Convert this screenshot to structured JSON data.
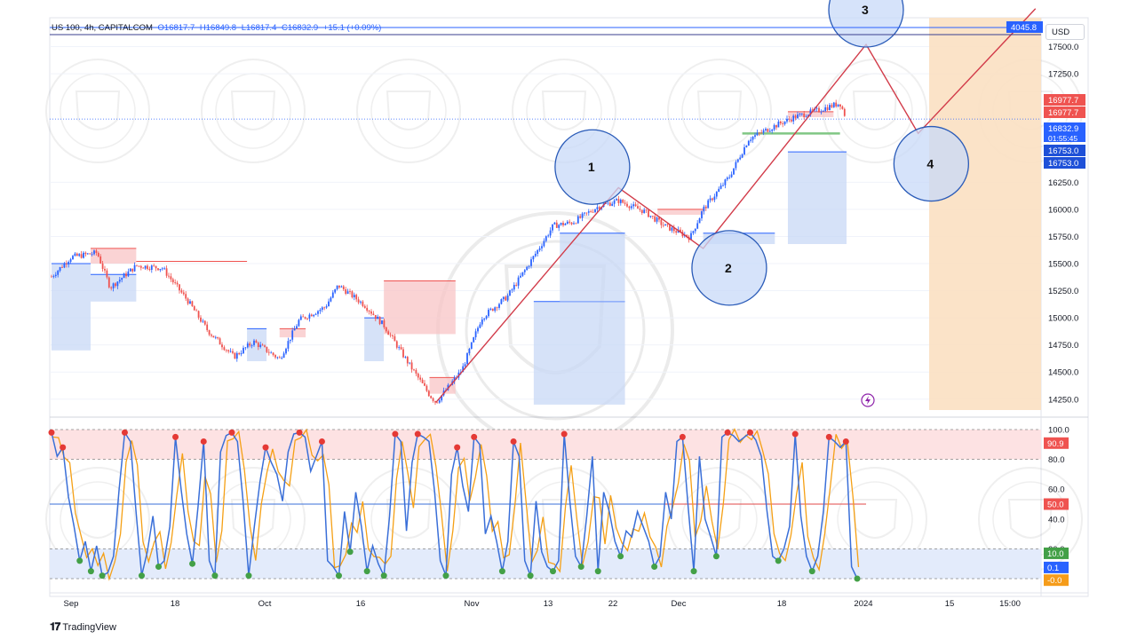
{
  "header": {
    "symbol": "US 100, 4h, CAPITALCOM",
    "open": "O16817.7",
    "high": "H16849.8",
    "low": "L16817.4",
    "close": "C16832.9",
    "change": "+15.1 (+0.09%)"
  },
  "currency_button": "USD",
  "branding": "TradingView",
  "colors": {
    "bull": "#2962ff",
    "bear": "#ef5350",
    "supply_zone": "#f8c4c6",
    "demand_zone": "#c8d8f6",
    "projection_zone": "#fbe0c2",
    "wave_line": "#d23c4a",
    "circle_fill": "#c8d9f8",
    "circle_stroke": "#2a5bb8",
    "stoch_k": "#3a6fd8",
    "stoch_d": "#f5a015"
  },
  "chart_data": [
    {
      "type": "candlestick",
      "symbol": "US 100",
      "timeframe": "4h",
      "ylim": [
        14150,
        17750
      ],
      "y_ticks": [
        "17500.0",
        "17250.0",
        "16250.0",
        "16000.0",
        "15750.0",
        "15500.0",
        "15250.0",
        "15000.0",
        "14750.0",
        "14500.0",
        "14250.0"
      ],
      "x_ticks": [
        "Sep",
        "18",
        "Oct",
        "16",
        "Nov",
        "13",
        "22",
        "Dec",
        "18",
        "2024",
        "15",
        "15:00"
      ],
      "price_labels": [
        {
          "value": "4045.8",
          "color": "#2962ff"
        },
        {
          "value": "16977.7",
          "color": "#ef5350"
        },
        {
          "value": "16977.7",
          "color": "#ef5350"
        },
        {
          "value": "16832.9",
          "color": "#2962ff"
        },
        {
          "value": "01:55:45",
          "color": "#2962ff"
        },
        {
          "value": "16753.0",
          "color": "#1e50d8"
        },
        {
          "value": "16753.0",
          "color": "#1e50d8"
        }
      ],
      "price_path": [
        [
          "Aug 29",
          15380
        ],
        [
          "Sep 1",
          15560
        ],
        [
          "Sep 5",
          15600
        ],
        [
          "Sep 7",
          15280
        ],
        [
          "Sep 11",
          15480
        ],
        [
          "Sep 15",
          15460
        ],
        [
          "Sep 19",
          15150
        ],
        [
          "Sep 22",
          14880
        ],
        [
          "Sep 26",
          14640
        ],
        [
          "Sep 29",
          14780
        ],
        [
          "Oct 3",
          14620
        ],
        [
          "Oct 6",
          14980
        ],
        [
          "Oct 10",
          15100
        ],
        [
          "Oct 12",
          15300
        ],
        [
          "Oct 16",
          15120
        ],
        [
          "Oct 19",
          14930
        ],
        [
          "Oct 23",
          14560
        ],
        [
          "Oct 26",
          14290
        ],
        [
          "Oct 27",
          14220
        ],
        [
          "Oct 31",
          14520
        ],
        [
          "Nov 3",
          15000
        ],
        [
          "Nov 7",
          15200
        ],
        [
          "Nov 10",
          15470
        ],
        [
          "Nov 14",
          15850
        ],
        [
          "Nov 17",
          15880
        ],
        [
          "Nov 21",
          16030
        ],
        [
          "Nov 24",
          16080
        ],
        [
          "Nov 28",
          15980
        ],
        [
          "Dec 1",
          15850
        ],
        [
          "Dec 5",
          15740
        ],
        [
          "Dec 7",
          16000
        ],
        [
          "Dec 11",
          16300
        ],
        [
          "Dec 14",
          16650
        ],
        [
          "Dec 18",
          16770
        ],
        [
          "Dec 21",
          16850
        ],
        [
          "Dec 25",
          16920
        ],
        [
          "Dec 28",
          16980
        ],
        [
          "Dec 29",
          16830
        ]
      ],
      "elliott_wave": [
        {
          "label": "",
          "date": "Oct 27",
          "value": 14220
        },
        {
          "label": "1",
          "date": "Nov 24",
          "value": 16200
        },
        {
          "label": "2",
          "date": "Dec 7",
          "value": 15640
        },
        {
          "label": "3",
          "date": "Jan 1",
          "value": 17520
        },
        {
          "label": "4",
          "date": "Jan 9",
          "value": 16700
        },
        {
          "label": "",
          "date": "Jan 27",
          "value": 17850
        }
      ],
      "wave_circles": [
        {
          "label": "1",
          "date": "Nov 20",
          "value": 16390
        },
        {
          "label": "2",
          "date": "Dec 11",
          "value": 15460
        },
        {
          "label": "3",
          "date": "Jan 1",
          "value": 17840
        },
        {
          "label": "4",
          "date": "Jan 11",
          "value": 16420
        }
      ]
    },
    {
      "type": "line",
      "name": "stochastic",
      "ylim": [
        0,
        100
      ],
      "y_ticks": [
        "100.0",
        "80.0",
        "60.0",
        "40.0",
        "20.0"
      ],
      "level_labels": [
        {
          "value": "90.9",
          "color": "#ef5350"
        },
        {
          "value": "50.0",
          "color": "#ef5350"
        },
        {
          "value": "10.0",
          "color": "#43a047"
        },
        {
          "value": "0.1",
          "color": "#2962ff"
        },
        {
          "value": "-0.0",
          "color": "#f59c1a"
        }
      ],
      "overbought_band": [
        80,
        100
      ],
      "oversold_band": [
        0,
        20
      ],
      "k_values": [
        98,
        82,
        88,
        55,
        35,
        12,
        25,
        5,
        22,
        2,
        4,
        15,
        60,
        98,
        92,
        45,
        2,
        18,
        42,
        8,
        12,
        35,
        95,
        60,
        30,
        10,
        48,
        92,
        12,
        2,
        85,
        96,
        98,
        92,
        52,
        2,
        35,
        65,
        88,
        78,
        70,
        52,
        85,
        97,
        98,
        95,
        72,
        82,
        92,
        12,
        8,
        2,
        45,
        18,
        58,
        35,
        5,
        22,
        10,
        2,
        42,
        97,
        92,
        32,
        78,
        97,
        95,
        92,
        58,
        12,
        2,
        70,
        88,
        62,
        45,
        95,
        90,
        30,
        42,
        25,
        5,
        25,
        92,
        82,
        12,
        2,
        52,
        18,
        8,
        5,
        12,
        97,
        52,
        15,
        8,
        42,
        82,
        5,
        58,
        45,
        25,
        15,
        32,
        28,
        45,
        35,
        25,
        8,
        15,
        58,
        40,
        92,
        95,
        48,
        5,
        82,
        40,
        28,
        15,
        95,
        98,
        96,
        92,
        95,
        98,
        93,
        82,
        45,
        15,
        12,
        20,
        35,
        97,
        42,
        15,
        5,
        15,
        45,
        95,
        92,
        88,
        92,
        8,
        0
      ]
    }
  ]
}
